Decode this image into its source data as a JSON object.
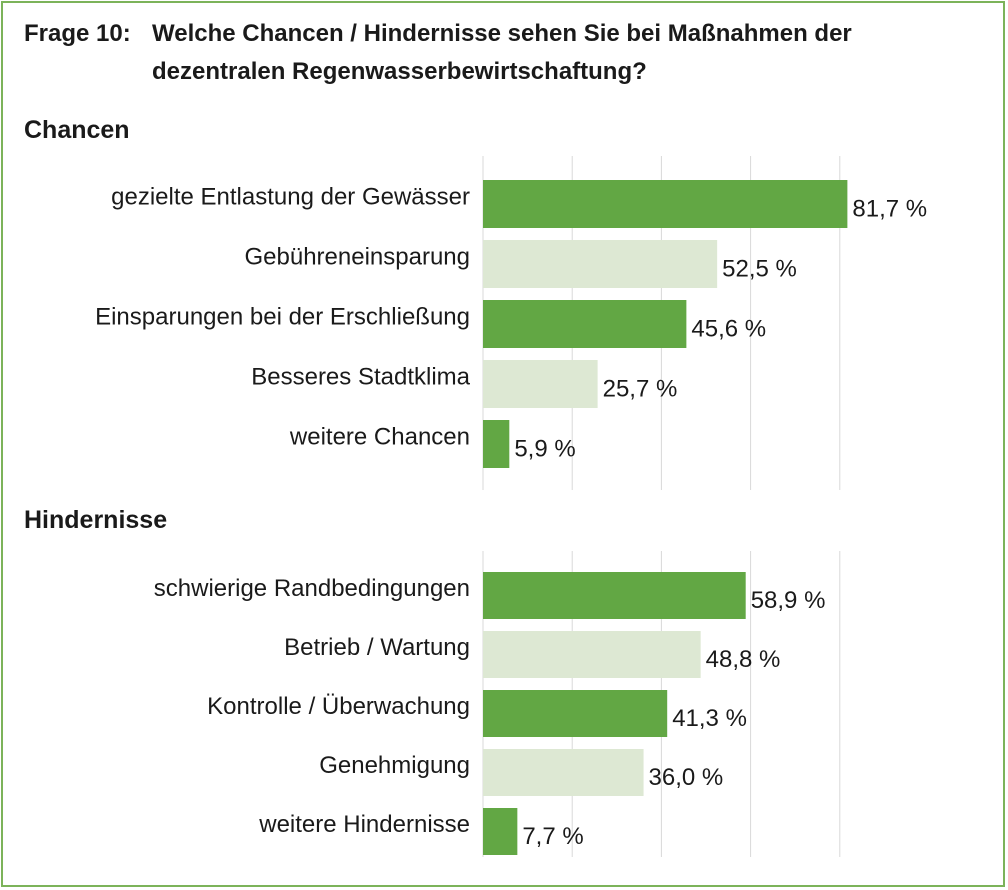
{
  "title": {
    "prefix": "Frage 10:",
    "line1": "Welche Chancen / Hindernisse sehen Sie bei Maßnahmen der",
    "line2": "dezentralen Regenwasserbewirtschaftung?"
  },
  "colors": {
    "bar_dark": "#62a744",
    "bar_light": "#dde8d3",
    "grid": "#d9d9d9",
    "border": "#7cb35a"
  },
  "chart_data": [
    {
      "type": "bar",
      "orientation": "horizontal",
      "title": "Chancen",
      "unit": "%",
      "xlim": [
        0,
        100
      ],
      "grid": true,
      "categories": [
        "gezielte Entlastung der Gewässer",
        "Gebühreneinsparung",
        "Einsparungen bei der Erschließung",
        "Besseres Stadtklima",
        "weitere Chancen"
      ],
      "values": [
        81.7,
        52.5,
        45.6,
        25.7,
        5.9
      ],
      "value_labels": [
        "81,7 %",
        "52,5 %",
        "45,6 %",
        "25,7 %",
        "5,9 %"
      ],
      "bar_colors": [
        "#62a744",
        "#dde8d3",
        "#62a744",
        "#dde8d3",
        "#62a744"
      ]
    },
    {
      "type": "bar",
      "orientation": "horizontal",
      "title": "Hindernisse",
      "unit": "%",
      "xlim": [
        0,
        100
      ],
      "grid": true,
      "categories": [
        "schwierige Randbedingungen",
        "Betrieb / Wartung",
        "Kontrolle / Überwachung",
        "Genehmigung",
        "weitere Hindernisse"
      ],
      "values": [
        58.9,
        48.8,
        41.3,
        36.0,
        7.7
      ],
      "value_labels": [
        "58,9 %",
        "48,8 %",
        "41,3 %",
        "36,0 %",
        "7,7 %"
      ],
      "bar_colors": [
        "#62a744",
        "#dde8d3",
        "#62a744",
        "#dde8d3",
        "#62a744"
      ]
    }
  ]
}
